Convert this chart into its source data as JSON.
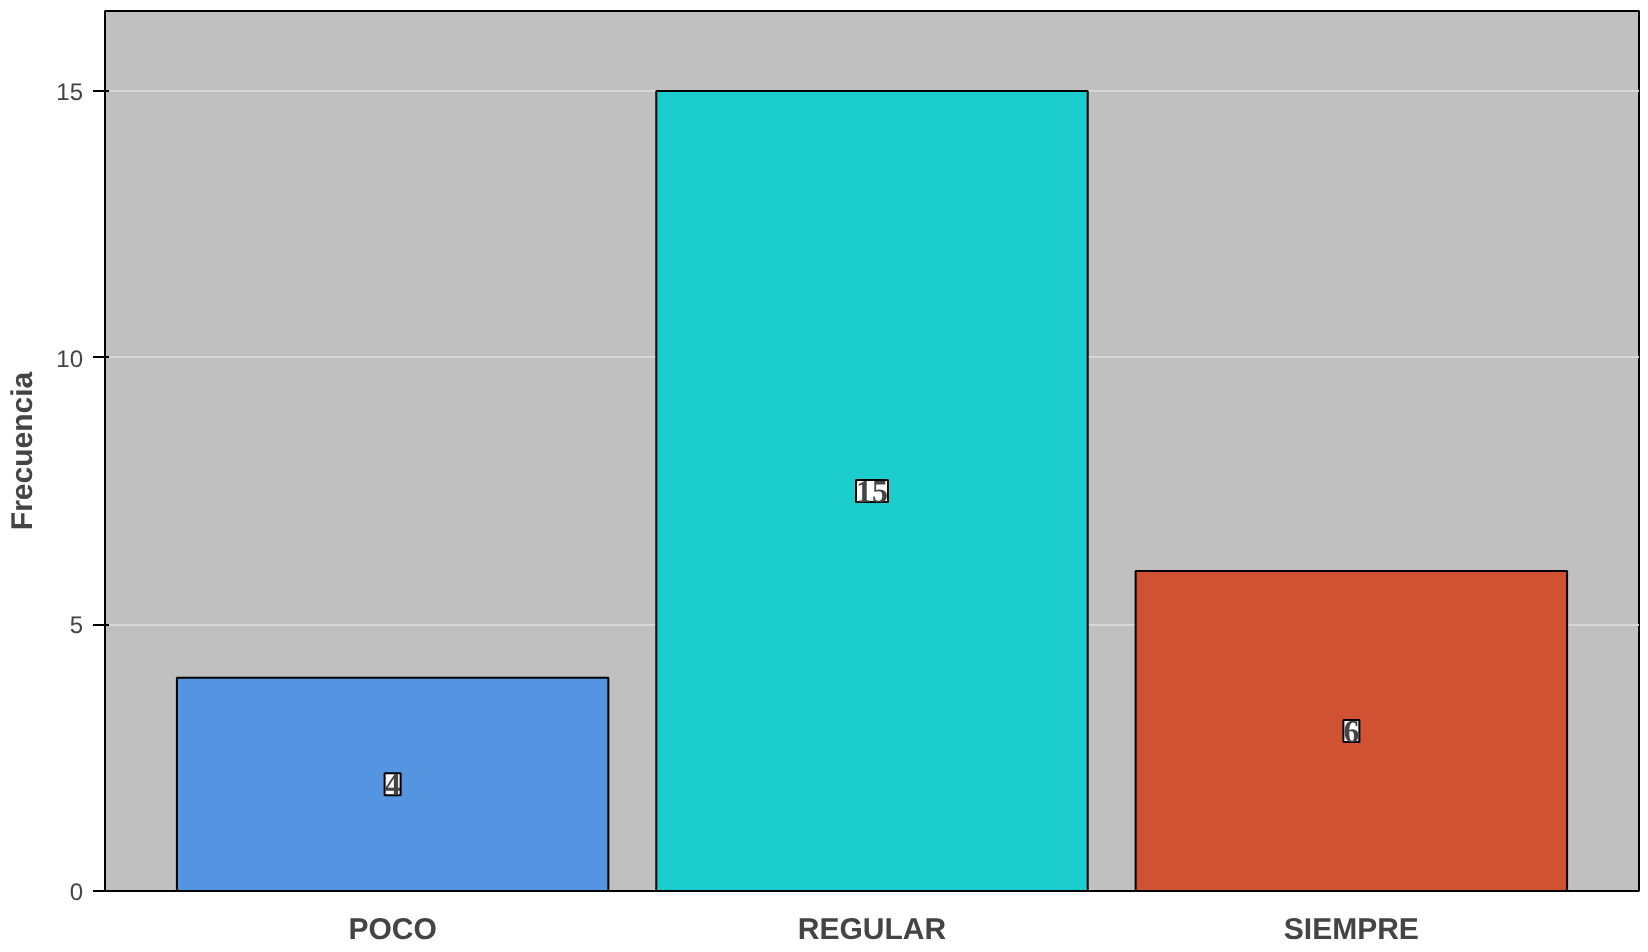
{
  "chart_data": {
    "type": "bar",
    "ylabel": "Frecuencia",
    "categories": [
      "POCO",
      "REGULAR",
      "SIEMPRE"
    ],
    "values": [
      4,
      15,
      6
    ],
    "colors": [
      "#5594e0",
      "#1ccdcd",
      "#d05232"
    ],
    "ylim": [
      0,
      16.5
    ],
    "yticks": [
      0,
      5,
      10,
      15
    ],
    "grid": "y",
    "data_labels": true
  }
}
